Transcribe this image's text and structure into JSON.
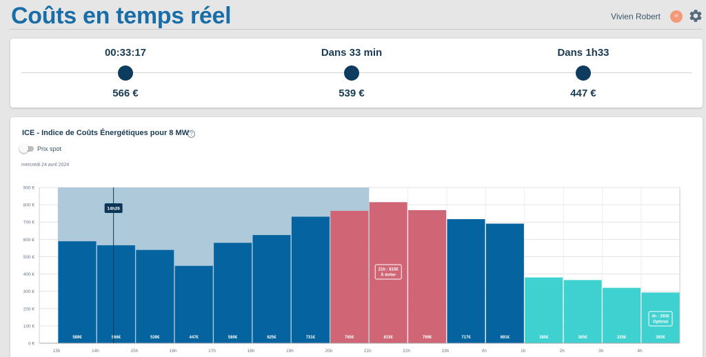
{
  "header": {
    "title": "Coûts en temps réel",
    "user_name": "Vivien Robert",
    "avatar_initials": "VI"
  },
  "summary": {
    "stops": [
      {
        "label": "00:33:17",
        "value": "566 €"
      },
      {
        "label": "Dans 33 min",
        "value": "539 €"
      },
      {
        "label": "Dans 1h33",
        "value": "447 €"
      }
    ]
  },
  "panel": {
    "title": "ICE - Indice de Coûts Énergétiques pour 8 MW",
    "help_glyph": "?",
    "toggle_label": "Prix spot",
    "date": "mercredi 24 avril 2024"
  },
  "chart_data": {
    "type": "bar",
    "x_ticks": [
      "13h",
      "14h",
      "15h",
      "16h",
      "17h",
      "18h",
      "19h",
      "20h",
      "21h",
      "22h",
      "23h",
      "0h",
      "1h",
      "2h",
      "3h",
      "4h"
    ],
    "y_ticks": [
      "900 €",
      "800 €",
      "700 €",
      "600 €",
      "500 €",
      "400 €",
      "300 €",
      "200 €",
      "100 €",
      "0 €"
    ],
    "ylim": [
      0,
      900
    ],
    "grid": true,
    "bars": [
      {
        "hour": "13h",
        "value": 589,
        "label": "589€",
        "kind": "normal"
      },
      {
        "hour": "14h",
        "value": 566,
        "label": "566€",
        "kind": "normal"
      },
      {
        "hour": "15h",
        "value": 539,
        "label": "539€",
        "kind": "normal"
      },
      {
        "hour": "16h",
        "value": 447,
        "label": "447€",
        "kind": "normal"
      },
      {
        "hour": "17h",
        "value": 580,
        "label": "580€",
        "kind": "normal"
      },
      {
        "hour": "18h",
        "value": 625,
        "label": "625€",
        "kind": "normal"
      },
      {
        "hour": "19h",
        "value": 731,
        "label": "731€",
        "kind": "normal"
      },
      {
        "hour": "20h",
        "value": 765,
        "label": "765€",
        "kind": "avoid"
      },
      {
        "hour": "21h",
        "value": 815,
        "label": "815€",
        "kind": "avoid"
      },
      {
        "hour": "22h",
        "value": 769,
        "label": "769€",
        "kind": "avoid"
      },
      {
        "hour": "23h",
        "value": 717,
        "label": "717€",
        "kind": "normal"
      },
      {
        "hour": "0h",
        "value": 691,
        "label": "691€",
        "kind": "normal"
      },
      {
        "hour": "1h",
        "value": 380,
        "label": "380€",
        "kind": "optimal"
      },
      {
        "hour": "2h",
        "value": 365,
        "label": "365€",
        "kind": "optimal"
      },
      {
        "hour": "3h",
        "value": 320,
        "label": "320€",
        "kind": "optimal"
      },
      {
        "hour": "4h",
        "value": 293,
        "label": "293€",
        "kind": "optimal"
      }
    ],
    "highlight_window": {
      "from": "13h",
      "to": "21h",
      "value": 900
    },
    "current_time": {
      "label": "14h26",
      "hour_value": 14.43
    },
    "annotations": [
      {
        "hour": "21h",
        "lines": [
          "21h : 815€",
          "À éviter"
        ]
      },
      {
        "hour": "4h",
        "lines": [
          "4h : 293€",
          "Optimal"
        ]
      }
    ],
    "colors": {
      "normal": "#0563a0",
      "avoid": "#d06675",
      "optimal": "#3ed1cf",
      "highlight": "#aecada",
      "current_line": "#0b3658"
    }
  }
}
